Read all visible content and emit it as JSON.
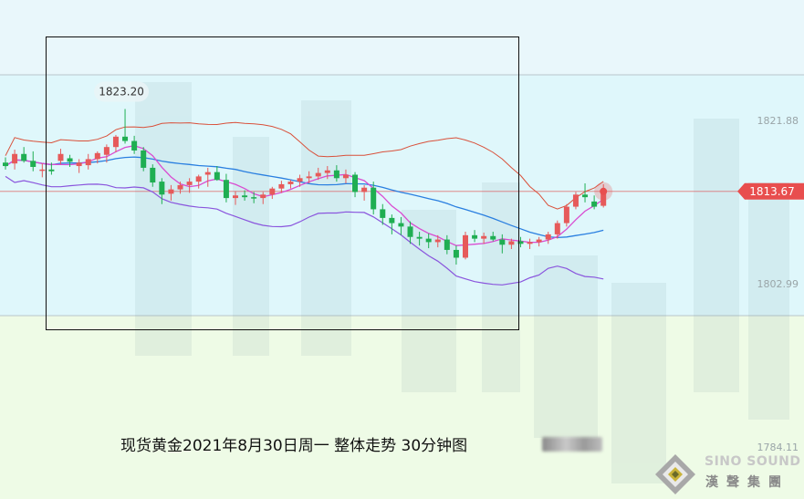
{
  "caption": "现货黄金2021年8月30日周一 整体走势 30分钟图",
  "brand": {
    "english": "SINO SOUND",
    "chinese": "漢聲集團"
  },
  "colors": {
    "bull": "#e65a5a",
    "bear": "#1fae52",
    "ma_fast": "#d94cd1",
    "ma_slow": "#2a7fe0",
    "band": "#8a55dd",
    "upper_band": "#d9503a",
    "price_line": "#e05050",
    "price_tag": "#e84e4e",
    "zone_top": "#e9f7fb",
    "zone_mid": "#dff7fb",
    "zone_bottom": "#eefbe6"
  },
  "chart_data": {
    "type": "candlestick",
    "timeframe": "30分钟",
    "y_ticks": [
      {
        "label": "1821.88",
        "value": 1821.88
      },
      {
        "label": "1802.99",
        "value": 1802.99
      },
      {
        "label": "1784.11",
        "value": 1784.11
      }
    ],
    "current_price": {
      "label": "1813.67",
      "value": 1813.67
    },
    "annotation": {
      "label": "1823.20",
      "value": 1823.2
    },
    "candles": [
      [
        1817.0,
        1817.6,
        1816.2,
        1816.6
      ],
      [
        1816.9,
        1818.5,
        1816.2,
        1818.0
      ],
      [
        1818.0,
        1818.8,
        1817.0,
        1817.2
      ],
      [
        1817.2,
        1818.3,
        1816.0,
        1816.5
      ],
      [
        1816.1,
        1816.9,
        1815.3,
        1816.2
      ],
      [
        1816.2,
        1817.0,
        1815.6,
        1816.0
      ],
      [
        1817.2,
        1818.6,
        1816.8,
        1818.0
      ],
      [
        1817.5,
        1817.9,
        1816.5,
        1817.1
      ],
      [
        1816.6,
        1817.4,
        1815.8,
        1817.0
      ],
      [
        1816.7,
        1818.0,
        1816.2,
        1817.4
      ],
      [
        1817.4,
        1818.3,
        1816.9,
        1818.1
      ],
      [
        1817.9,
        1819.1,
        1817.0,
        1818.8
      ],
      [
        1818.8,
        1820.2,
        1818.2,
        1820.0
      ],
      [
        1820.0,
        1823.2,
        1819.2,
        1819.5
      ],
      [
        1819.5,
        1820.1,
        1818.0,
        1818.4
      ],
      [
        1818.4,
        1818.8,
        1816.0,
        1816.4
      ],
      [
        1816.4,
        1816.8,
        1814.2,
        1814.7
      ],
      [
        1814.8,
        1815.2,
        1812.2,
        1813.3
      ],
      [
        1813.4,
        1814.4,
        1812.6,
        1813.9
      ],
      [
        1813.9,
        1814.8,
        1813.4,
        1814.4
      ],
      [
        1814.4,
        1815.2,
        1813.5,
        1814.8
      ],
      [
        1814.8,
        1815.6,
        1814.0,
        1815.4
      ],
      [
        1815.6,
        1816.4,
        1814.2,
        1815.9
      ],
      [
        1815.9,
        1816.6,
        1814.9,
        1815.0
      ],
      [
        1815.0,
        1815.7,
        1812.4,
        1812.9
      ],
      [
        1812.9,
        1813.7,
        1812.1,
        1813.2
      ],
      [
        1813.2,
        1813.8,
        1812.6,
        1813.0
      ],
      [
        1813.0,
        1813.6,
        1812.3,
        1812.9
      ],
      [
        1812.9,
        1813.6,
        1812.2,
        1813.3
      ],
      [
        1813.3,
        1814.2,
        1812.8,
        1814.0
      ],
      [
        1814.0,
        1814.9,
        1813.5,
        1814.5
      ],
      [
        1814.5,
        1815.0,
        1814.0,
        1814.8
      ],
      [
        1814.8,
        1815.6,
        1814.2,
        1815.2
      ],
      [
        1815.2,
        1816.0,
        1814.6,
        1815.4
      ],
      [
        1815.4,
        1816.4,
        1815.0,
        1815.8
      ],
      [
        1815.8,
        1816.6,
        1815.1,
        1816.1
      ],
      [
        1816.1,
        1816.7,
        1814.8,
        1815.2
      ],
      [
        1815.2,
        1816.2,
        1814.6,
        1815.6
      ],
      [
        1815.6,
        1815.9,
        1813.0,
        1813.6
      ],
      [
        1813.6,
        1814.4,
        1812.6,
        1814.1
      ],
      [
        1814.1,
        1814.8,
        1811.0,
        1811.6
      ],
      [
        1811.6,
        1812.2,
        1809.8,
        1810.6
      ],
      [
        1810.6,
        1811.0,
        1808.7,
        1810.0
      ],
      [
        1810.0,
        1810.7,
        1808.6,
        1809.6
      ],
      [
        1809.6,
        1810.2,
        1807.6,
        1808.4
      ],
      [
        1808.4,
        1809.0,
        1807.4,
        1808.2
      ],
      [
        1808.2,
        1808.8,
        1807.1,
        1807.8
      ],
      [
        1807.8,
        1808.6,
        1807.2,
        1808.1
      ],
      [
        1808.1,
        1808.6,
        1806.4,
        1806.9
      ],
      [
        1806.9,
        1807.4,
        1805.2,
        1806.0
      ],
      [
        1806.0,
        1809.0,
        1805.8,
        1808.6
      ],
      [
        1808.6,
        1809.2,
        1807.8,
        1808.2
      ],
      [
        1808.2,
        1808.9,
        1807.6,
        1808.5
      ],
      [
        1808.5,
        1809.0,
        1807.9,
        1808.1
      ],
      [
        1808.1,
        1808.7,
        1806.5,
        1807.5
      ],
      [
        1807.5,
        1808.2,
        1807.0,
        1807.9
      ],
      [
        1807.9,
        1808.4,
        1807.2,
        1807.6
      ],
      [
        1807.6,
        1808.2,
        1807.0,
        1807.8
      ],
      [
        1807.8,
        1808.4,
        1807.3,
        1808.1
      ],
      [
        1808.1,
        1809.0,
        1807.6,
        1808.7
      ],
      [
        1808.7,
        1810.3,
        1808.2,
        1810.0
      ],
      [
        1810.0,
        1812.2,
        1809.6,
        1811.9
      ],
      [
        1811.9,
        1813.6,
        1811.6,
        1813.3
      ],
      [
        1813.3,
        1814.6,
        1812.4,
        1813.0
      ],
      [
        1812.5,
        1813.2,
        1811.6,
        1811.9
      ],
      [
        1812.0,
        1814.5,
        1811.8,
        1813.67
      ]
    ]
  }
}
